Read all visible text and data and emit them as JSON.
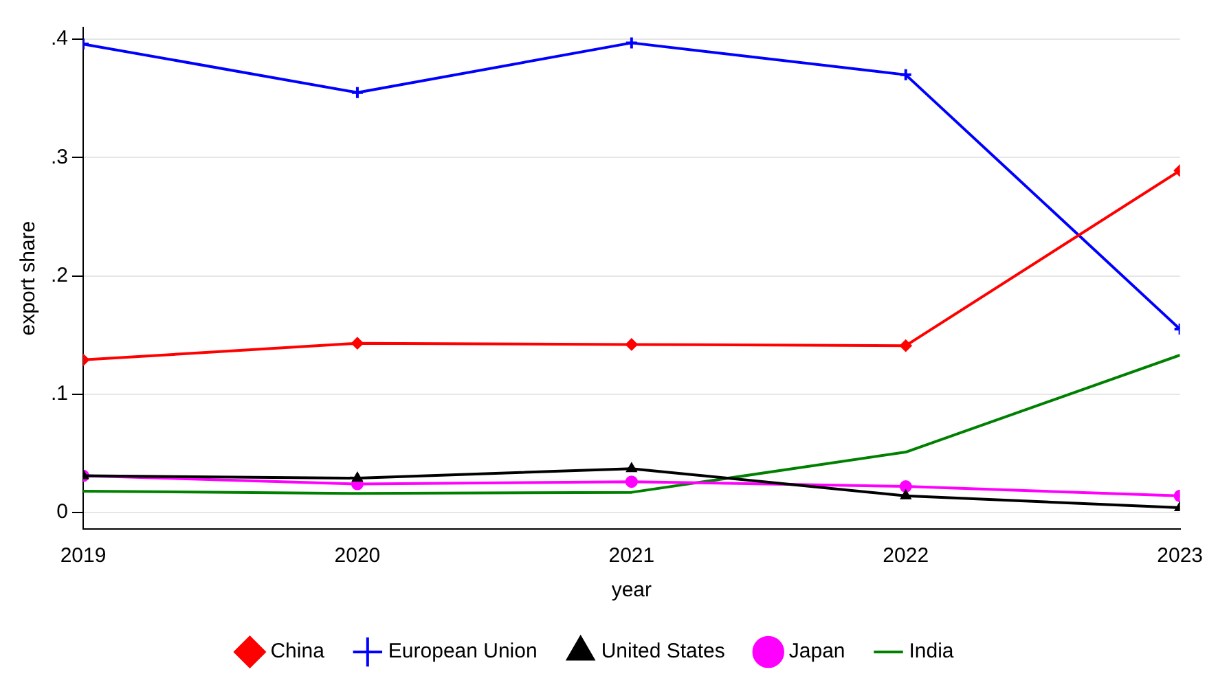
{
  "chart_data": {
    "type": "line",
    "xlabel": "year",
    "ylabel": "export share",
    "x": [
      2019,
      2020,
      2021,
      2022,
      2023
    ],
    "xlim": [
      2019,
      2023
    ],
    "xticks": [
      2019,
      2020,
      2021,
      2022,
      2023
    ],
    "ylim": [
      -0.014,
      0.41
    ],
    "yticks": [
      {
        "value": 0,
        "label": "0"
      },
      {
        "value": 0.1,
        "label": ".1"
      },
      {
        "value": 0.2,
        "label": ".2"
      },
      {
        "value": 0.3,
        "label": ".3"
      },
      {
        "value": 0.4,
        "label": ".4"
      }
    ],
    "grid": "y",
    "legend": "bottom",
    "series": [
      {
        "name": "China",
        "color": "#ff0000",
        "marker": "diamond",
        "values": [
          0.129,
          0.143,
          0.142,
          0.141,
          0.289
        ]
      },
      {
        "name": "European Union",
        "color": "#0000ff",
        "marker": "cross",
        "values": [
          0.396,
          0.355,
          0.397,
          0.37,
          0.155
        ]
      },
      {
        "name": "United States",
        "color": "#000000",
        "marker": "triangle",
        "values": [
          0.031,
          0.029,
          0.037,
          0.014,
          0.004
        ]
      },
      {
        "name": "Japan",
        "color": "#ff00ff",
        "marker": "circle",
        "values": [
          0.031,
          0.024,
          0.026,
          0.022,
          0.014
        ]
      },
      {
        "name": "India",
        "color": "#008000",
        "marker": "none",
        "values": [
          0.018,
          0.016,
          0.017,
          0.051,
          0.133
        ]
      }
    ]
  }
}
